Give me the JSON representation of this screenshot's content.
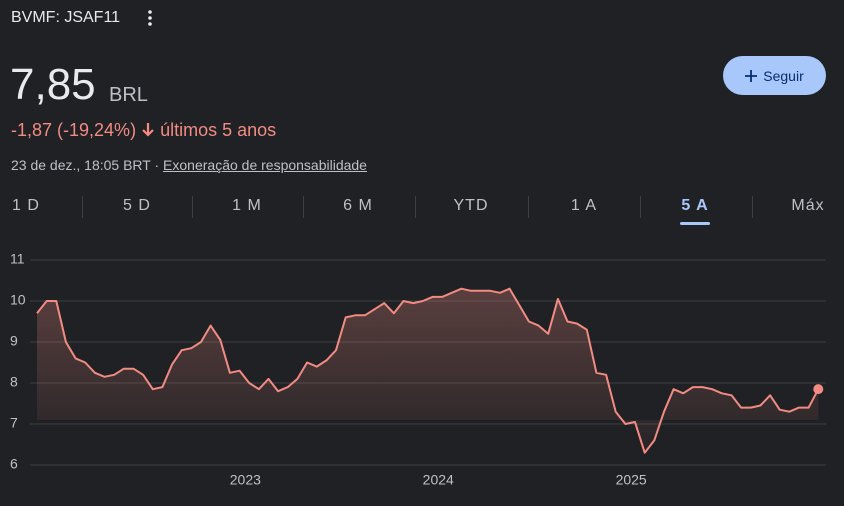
{
  "header": {
    "symbol": "BVMF: JSAF11",
    "price": "7,85",
    "currency": "BRL",
    "change": "-1,87 (-19,24%)",
    "period": "últimos 5 anos",
    "timestamp": "23 de dez., 18:05 BRT",
    "separator": "·",
    "disclaimer": "Exoneração de responsabilidade",
    "follow": "Seguir"
  },
  "tabs": [
    "1 D",
    "5 D",
    "1 M",
    "6 M",
    "YTD",
    "1 A",
    "5 A",
    "Máx"
  ],
  "selected_tab": 6,
  "chart_data": {
    "type": "line",
    "color": "#f28b82",
    "grid": true,
    "xlim": [
      2021.78,
      2026.01
    ],
    "xticks": [
      2023,
      2024,
      2025
    ],
    "ylim": [
      6,
      11
    ],
    "yticks": [
      6,
      7,
      8,
      9,
      10,
      11
    ],
    "x": [
      2021.92,
      2021.97,
      2022.02,
      2022.07,
      2022.12,
      2022.17,
      2022.22,
      2022.27,
      2022.32,
      2022.37,
      2022.42,
      2022.47,
      2022.52,
      2022.57,
      2022.62,
      2022.67,
      2022.72,
      2022.77,
      2022.82,
      2022.87,
      2022.92,
      2022.97,
      2023.02,
      2023.07,
      2023.12,
      2023.17,
      2023.22,
      2023.27,
      2023.32,
      2023.37,
      2023.42,
      2023.47,
      2023.52,
      2023.57,
      2023.62,
      2023.67,
      2023.72,
      2023.77,
      2023.82,
      2023.87,
      2023.92,
      2023.97,
      2024.02,
      2024.07,
      2024.12,
      2024.17,
      2024.22,
      2024.27,
      2024.32,
      2024.37,
      2024.42,
      2024.47,
      2024.52,
      2024.57,
      2024.62,
      2024.67,
      2024.72,
      2024.77,
      2024.82,
      2024.87,
      2024.92,
      2024.97,
      2025.02,
      2025.07,
      2025.12,
      2025.17,
      2025.22,
      2025.27,
      2025.32,
      2025.37,
      2025.42,
      2025.47,
      2025.52,
      2025.57,
      2025.62,
      2025.67,
      2025.72,
      2025.77,
      2025.82,
      2025.87,
      2025.92,
      2025.97
    ],
    "values": [
      9.7,
      10.0,
      10.0,
      9.0,
      8.6,
      8.5,
      8.25,
      8.15,
      8.2,
      8.35,
      8.35,
      8.2,
      7.85,
      7.9,
      8.45,
      8.8,
      8.85,
      9.0,
      9.4,
      9.05,
      8.25,
      8.3,
      8.0,
      7.85,
      8.1,
      7.8,
      7.9,
      8.1,
      8.5,
      8.4,
      8.55,
      8.8,
      9.6,
      9.65,
      9.65,
      9.8,
      9.95,
      9.7,
      10.0,
      9.95,
      10.0,
      10.1,
      10.1,
      10.2,
      10.3,
      10.25,
      10.25,
      10.25,
      10.2,
      10.3,
      9.9,
      9.5,
      9.4,
      9.2,
      10.05,
      9.5,
      9.45,
      9.3,
      8.25,
      8.2,
      7.3,
      7.0,
      7.05,
      6.3,
      6.6,
      7.3,
      7.85,
      7.75,
      7.9,
      7.9,
      7.85,
      7.75,
      7.7,
      7.4,
      7.4,
      7.45,
      7.7,
      7.35,
      7.3,
      7.4,
      7.4,
      7.85
    ]
  }
}
